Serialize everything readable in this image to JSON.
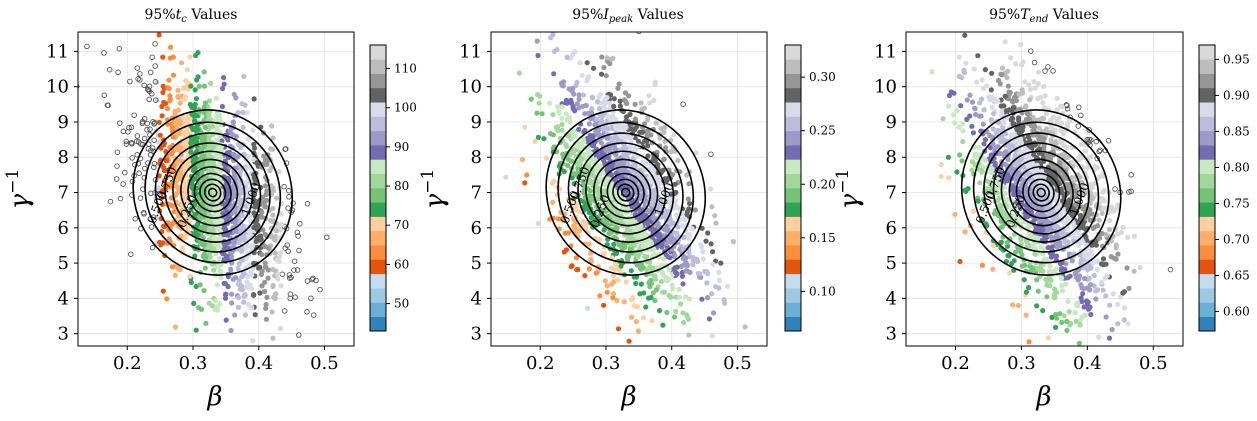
{
  "figure": {
    "panel_titles": [
      {
        "prefix": "95%",
        "symbol": "t",
        "sub": "c",
        "suffix": " Values"
      },
      {
        "prefix": "95%",
        "symbol": "I",
        "sub": "peak",
        "suffix": " Values"
      },
      {
        "prefix": "95%",
        "symbol": "T",
        "sub": "end",
        "suffix": " Values"
      }
    ],
    "xlabel": "β",
    "ylabel_base": "γ",
    "ylabel_sup": "−1"
  },
  "chart_data": [
    {
      "type": "scatter",
      "title": "95%t_c Values",
      "xlabel": "β",
      "ylabel": "γ^-1",
      "xlim": [
        0.125,
        0.545
      ],
      "ylim": [
        2.65,
        11.55
      ],
      "xticks": [
        "0.2",
        "0.3",
        "0.4",
        "0.5"
      ],
      "yticks": [
        "3",
        "4",
        "5",
        "6",
        "7",
        "8",
        "9",
        "10",
        "11"
      ],
      "grid": true,
      "colorbar": {
        "colormap": "tab20c_r",
        "min": 43,
        "max": 116,
        "ticks": [
          "50",
          "60",
          "70",
          "80",
          "90",
          "100",
          "110"
        ]
      },
      "band_direction": "increasing_with_beta",
      "cloud_center": {
        "beta": 0.33,
        "gamma_inv": 7.0
      },
      "contour_labels": [
        "0.750",
        "0.500",
        "0.250",
        "1.000"
      ],
      "contour_color": "#000000",
      "unfilled_points_color": "#555555"
    },
    {
      "type": "scatter",
      "title": "95%I_peak Values",
      "xlabel": "β",
      "ylabel": "γ^-1",
      "xlim": [
        0.125,
        0.545
      ],
      "ylim": [
        2.65,
        11.55
      ],
      "xticks": [
        "0.2",
        "0.3",
        "0.4",
        "0.5"
      ],
      "yticks": [
        "3",
        "4",
        "5",
        "6",
        "7",
        "8",
        "9",
        "10",
        "11"
      ],
      "grid": true,
      "colorbar": {
        "colormap": "tab20c_r",
        "min": 0.063,
        "max": 0.33,
        "ticks": [
          "0.10",
          "0.15",
          "0.20",
          "0.25",
          "0.30"
        ]
      },
      "band_direction": "increasing_with_beta_and_gamma_inv",
      "cloud_center": {
        "beta": 0.33,
        "gamma_inv": 7.0
      },
      "contour_labels": [
        "0.750",
        "0.500",
        "0.250",
        "1.000"
      ],
      "contour_color": "#000000",
      "unfilled_points_color": "#555555"
    },
    {
      "type": "scatter",
      "title": "95%T_end Values",
      "xlabel": "β",
      "ylabel": "γ^-1",
      "xlim": [
        0.125,
        0.545
      ],
      "ylim": [
        2.65,
        11.55
      ],
      "xticks": [
        "0.2",
        "0.3",
        "0.4",
        "0.5"
      ],
      "yticks": [
        "3",
        "4",
        "5",
        "6",
        "7",
        "8",
        "9",
        "10",
        "11"
      ],
      "grid": true,
      "colorbar": {
        "colormap": "tab20c_r",
        "min": 0.573,
        "max": 0.97,
        "ticks": [
          "0.60",
          "0.65",
          "0.70",
          "0.75",
          "0.80",
          "0.85",
          "0.90",
          "0.95"
        ]
      },
      "band_direction": "increasing_with_beta_and_gamma_inv",
      "cloud_center": {
        "beta": 0.33,
        "gamma_inv": 7.0
      },
      "contour_labels": [
        "0.750",
        "0.500",
        "0.250",
        "1.000"
      ],
      "contour_color": "#000000",
      "unfilled_points_color": "#555555"
    }
  ],
  "palette": [
    "#3182bd",
    "#6baed6",
    "#9ecae1",
    "#c6dbef",
    "#e6550d",
    "#fd8d3c",
    "#fdae6b",
    "#fdd0a2",
    "#31a354",
    "#74c476",
    "#a1d99b",
    "#c7e9c0",
    "#756bb1",
    "#9e9ac8",
    "#bcbddc",
    "#dadaeb",
    "#636363",
    "#969696",
    "#bdbdbd",
    "#d9d9d9"
  ]
}
